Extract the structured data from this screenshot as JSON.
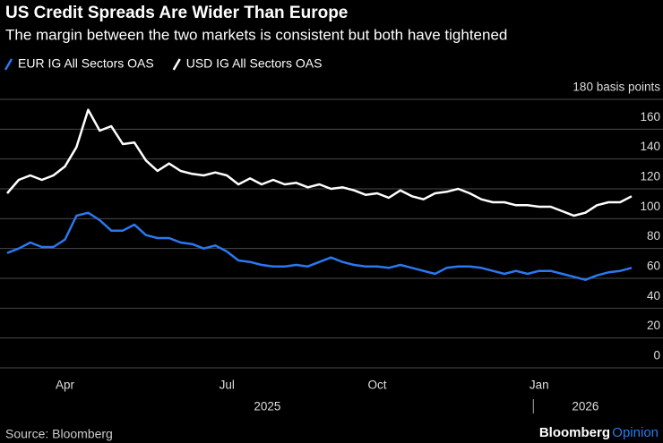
{
  "chart_data": {
    "type": "line",
    "title": "US Credit Spreads Are Wider Than Europe",
    "subtitle": "The margin between the two markets is consistent but both have tightened",
    "categories": [
      null,
      null,
      null,
      null,
      null,
      "Apr",
      null,
      null,
      null,
      null,
      null,
      null,
      null,
      null,
      null,
      null,
      null,
      null,
      null,
      "Jul",
      null,
      null,
      null,
      null,
      null,
      null,
      null,
      null,
      null,
      null,
      null,
      null,
      "Oct",
      null,
      null,
      null,
      null,
      null,
      null,
      null,
      null,
      null,
      null,
      null,
      null,
      null,
      "Jan",
      null,
      null,
      null,
      null,
      null,
      null,
      null,
      null
    ],
    "x_groups": [
      {
        "label": "2025",
        "start": 0,
        "end": 45
      },
      {
        "label": "2026",
        "start": 46,
        "end": 54
      }
    ],
    "series": [
      {
        "name": "EUR IG All Sectors OAS",
        "color": "#2a78f0",
        "values": [
          77,
          80,
          84,
          81,
          81,
          86,
          102,
          104,
          99,
          92,
          92,
          96,
          89,
          87,
          87,
          84,
          83,
          80,
          82,
          78,
          72,
          71,
          69,
          68,
          68,
          69,
          68,
          71,
          74,
          71,
          69,
          68,
          68,
          67,
          69,
          67,
          65,
          63,
          67,
          68,
          68,
          67,
          65,
          63,
          65,
          63,
          65,
          65,
          63,
          61,
          59,
          62,
          64,
          65,
          67
        ]
      },
      {
        "name": "USD IG All Sectors OAS",
        "color": "#ffffff",
        "values": [
          117,
          126,
          129,
          126,
          129,
          135,
          148,
          173,
          159,
          162,
          150,
          151,
          139,
          132,
          137,
          132,
          130,
          129,
          131,
          129,
          123,
          127,
          123,
          126,
          123,
          124,
          121,
          123,
          120,
          121,
          119,
          116,
          117,
          114,
          119,
          115,
          113,
          117,
          118,
          120,
          117,
          113,
          111,
          111,
          109,
          109,
          108,
          108,
          105,
          102,
          104,
          109,
          111,
          111,
          115
        ]
      }
    ],
    "ylim": [
      0,
      180
    ],
    "yticks": [
      0,
      20,
      40,
      60,
      80,
      100,
      120,
      140,
      160,
      {
        "value": 180,
        "label": "180 basis points"
      }
    ],
    "grid": true,
    "legend": "top"
  },
  "footer": {
    "source": "Source: Bloomberg",
    "logo": "Bloomberg",
    "logo_sub": "Opinion"
  }
}
